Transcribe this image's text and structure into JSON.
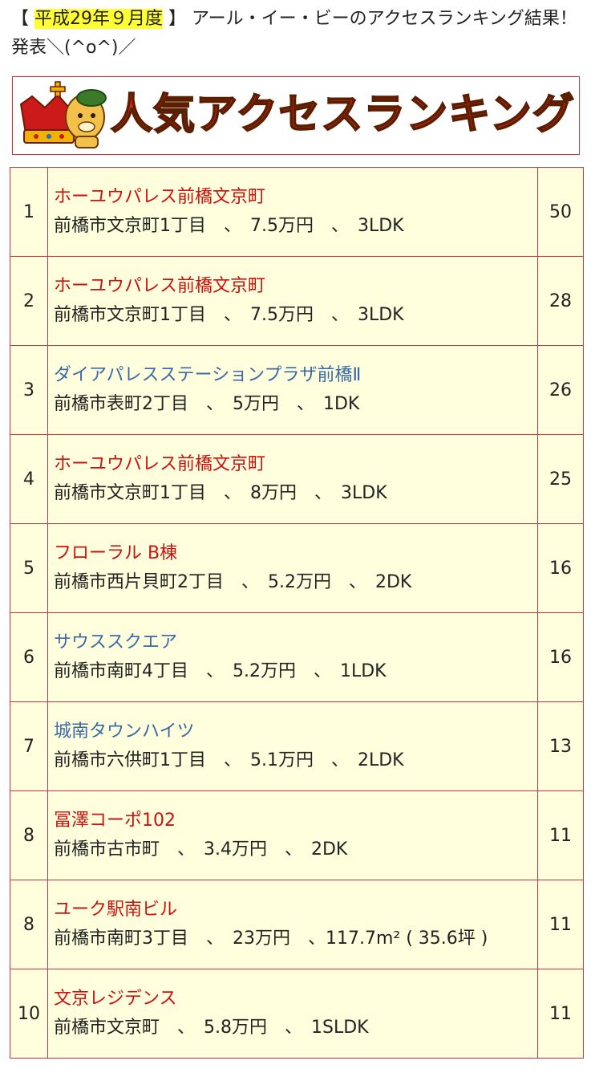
{
  "intro": {
    "bracket_open": "【 ",
    "period": "平成29年９月度",
    "bracket_close": " 】 ",
    "rest": "アール・イー・ビーのアクセスランキング結果！発表＼(^o^)／"
  },
  "banner": {
    "title": "人気アクセスランキング",
    "mascot_icon": "crowned-mascot-icon"
  },
  "ranking": [
    {
      "rank": "1",
      "name": "ホーユウパレス前橋文京町",
      "name_color": "red",
      "detail": "前橋市文京町1丁目　、　7.5万円　、　3LDK",
      "count": "50"
    },
    {
      "rank": "2",
      "name": "ホーユウパレス前橋文京町",
      "name_color": "red",
      "detail": "前橋市文京町1丁目　、　7.5万円　、　3LDK",
      "count": "28"
    },
    {
      "rank": "3",
      "name": "ダイアパレスステーションプラザ前橋Ⅱ",
      "name_color": "blue",
      "detail": "前橋市表町2丁目　、　5万円　、　1DK",
      "count": "26"
    },
    {
      "rank": "4",
      "name": "ホーユウパレス前橋文京町",
      "name_color": "red",
      "detail": "前橋市文京町1丁目　、　8万円　、　3LDK",
      "count": "25"
    },
    {
      "rank": "5",
      "name": "フローラル B棟",
      "name_color": "red",
      "detail": "前橋市西片貝町2丁目　、　5.2万円　、　2DK",
      "count": "16"
    },
    {
      "rank": "6",
      "name": "サウススクエア",
      "name_color": "blue",
      "detail": "前橋市南町4丁目　、　5.2万円　、　1LDK",
      "count": "16"
    },
    {
      "rank": "7",
      "name": "城南タウンハイツ",
      "name_color": "blue",
      "detail": "前橋市六供町1丁目　、　5.1万円　、　2LDK",
      "count": "13"
    },
    {
      "rank": "8",
      "name": "冨澤コーポ102",
      "name_color": "red",
      "detail": "前橋市古市町　、　3.4万円　、　2DK",
      "count": "11"
    },
    {
      "rank": "8",
      "name": "ユーク駅南ビル",
      "name_color": "red",
      "detail": "前橋市南町3丁目　、　23万円　、117.7m² ( 35.6坪 )",
      "count": "11"
    },
    {
      "rank": "10",
      "name": "文京レジデンス",
      "name_color": "red",
      "detail": "前橋市文京町　、　5.8万円　、　1SLDK",
      "count": "11"
    }
  ]
}
